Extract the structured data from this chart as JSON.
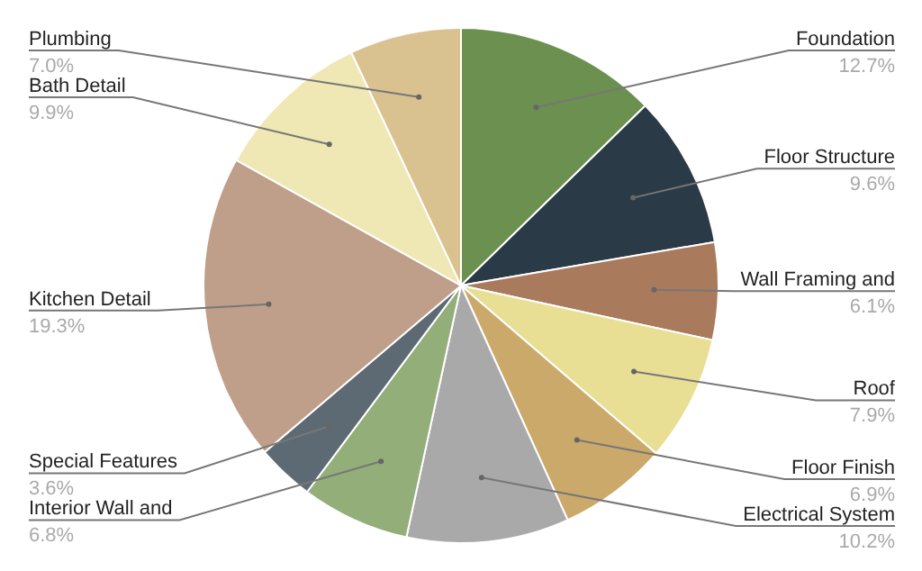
{
  "chart_data": {
    "type": "pie",
    "categories": [
      "Foundation",
      "Floor Structure",
      "Wall Framing and",
      "Roof",
      "Floor Finish",
      "Electrical System",
      "Interior Wall and",
      "Special Features",
      "Kitchen Detail",
      "Bath Detail",
      "Plumbing"
    ],
    "values": [
      12.7,
      9.6,
      6.1,
      7.9,
      6.9,
      10.2,
      6.8,
      3.6,
      19.3,
      9.9,
      7.0
    ],
    "value_labels": [
      "12.7%",
      "9.6%",
      "6.1%",
      "7.9%",
      "6.9%",
      "10.2%",
      "6.8%",
      "3.6%",
      "19.3%",
      "9.9%",
      "7.0%"
    ],
    "colors": [
      "#6b904f",
      "#2b3a47",
      "#a97a5c",
      "#e8df95",
      "#cba96a",
      "#a9a9a9",
      "#93ae78",
      "#5d6a74",
      "#bf9f8a",
      "#efe7b4",
      "#d9c290"
    ],
    "legend": false
  }
}
